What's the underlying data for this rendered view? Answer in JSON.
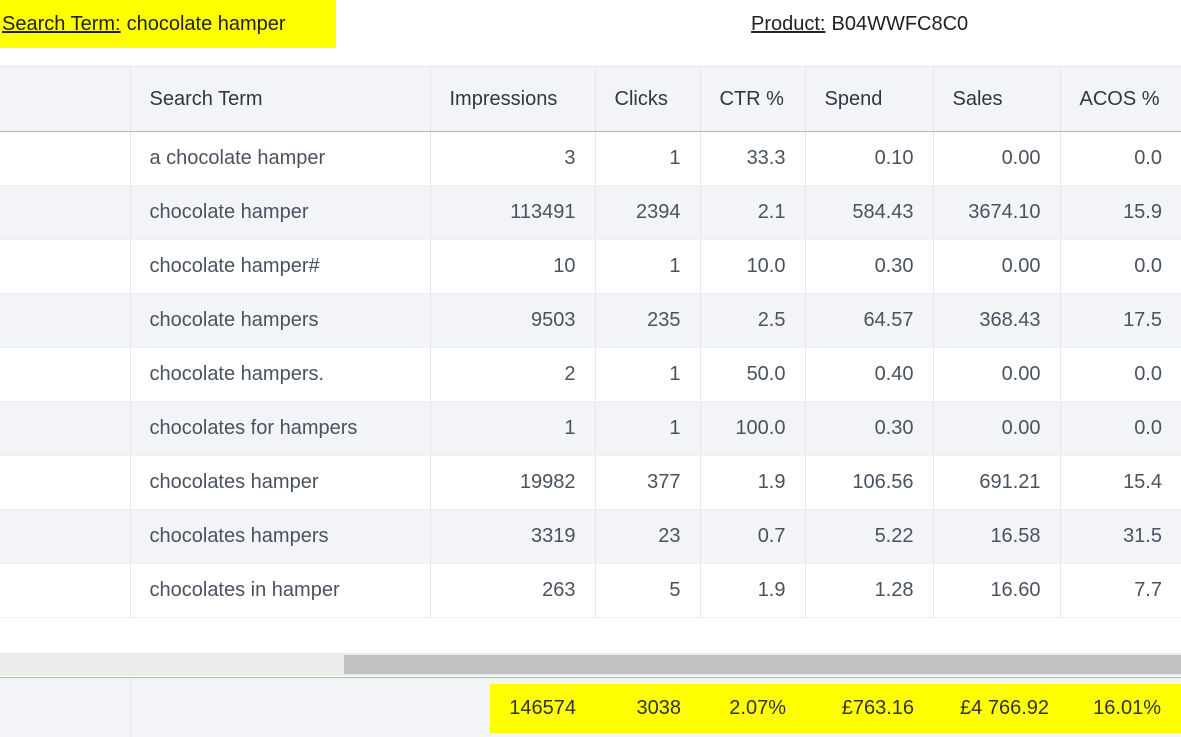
{
  "header": {
    "search_term_label": "Search Term:",
    "search_term_value": "chocolate hamper",
    "product_label": "Product:",
    "product_value": "B04WWFC8C0"
  },
  "columns": [
    "",
    "Search Term",
    "Impressions",
    "Clicks",
    "CTR %",
    "Spend",
    "Sales",
    "ACOS %"
  ],
  "rows": [
    [
      "a chocolate hamper",
      "3",
      "1",
      "33.3",
      "0.10",
      "0.00",
      "0.0"
    ],
    [
      "chocolate hamper",
      "113491",
      "2394",
      "2.1",
      "584.43",
      "3674.10",
      "15.9"
    ],
    [
      "chocolate hamper#",
      "10",
      "1",
      "10.0",
      "0.30",
      "0.00",
      "0.0"
    ],
    [
      "chocolate hampers",
      "9503",
      "235",
      "2.5",
      "64.57",
      "368.43",
      "17.5"
    ],
    [
      "chocolate hampers.",
      "2",
      "1",
      "50.0",
      "0.40",
      "0.00",
      "0.0"
    ],
    [
      "chocolates for hampers",
      "1",
      "1",
      "100.0",
      "0.30",
      "0.00",
      "0.0"
    ],
    [
      "chocolates hamper",
      "19982",
      "377",
      "1.9",
      "106.56",
      "691.21",
      "15.4"
    ],
    [
      "chocolates hampers",
      "3319",
      "23",
      "0.7",
      "5.22",
      "16.58",
      "31.5"
    ],
    [
      "chocolates in hamper",
      "263",
      "5",
      "1.9",
      "1.28",
      "16.60",
      "7.7"
    ]
  ],
  "totals": {
    "impressions": "146574",
    "clicks": "3038",
    "ctr": "2.07%",
    "spend": "£763.16",
    "sales": "£4 766.92",
    "acos": "16.01%"
  },
  "colors": {
    "highlight": "#ffff00",
    "header_bg": "#f3f4f7",
    "accent_border": "#7fc9dd"
  }
}
